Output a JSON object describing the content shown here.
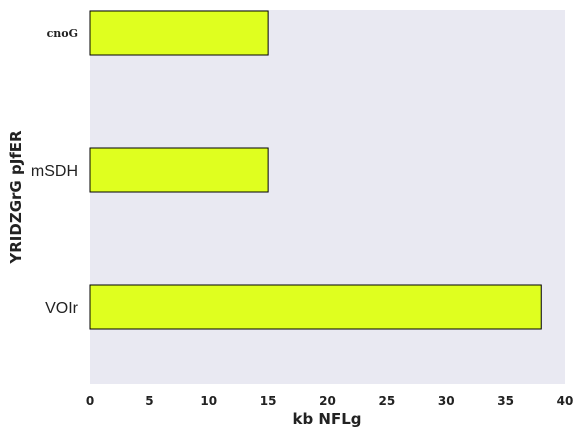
{
  "chart_data": {
    "type": "bar",
    "orientation": "horizontal",
    "categories": [
      "cnoG",
      "mSDH",
      "VOIr"
    ],
    "values": [
      15,
      15,
      38
    ],
    "xlabel": "kb NFLg",
    "ylabel": "YRIDZGrG pJfER",
    "xlim": [
      0,
      40
    ],
    "xticks": [
      0,
      5,
      10,
      15,
      20,
      25,
      30,
      35,
      40
    ],
    "grid": false,
    "bar_color": "#dfff1f",
    "bar_edge_color": "#000000",
    "plot_background": "#e9e9f2"
  }
}
